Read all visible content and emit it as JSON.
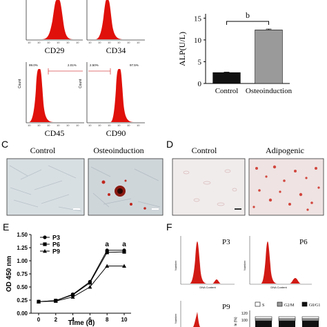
{
  "panels": {
    "flow_markers": [
      {
        "label": "CD29",
        "left_pct": "",
        "right_pct": ""
      },
      {
        "label": "CD34",
        "left_pct": "",
        "right_pct": ""
      },
      {
        "label": "CD45",
        "left_pct": "99.0%",
        "right_pct": "2.01%"
      },
      {
        "label": "CD90",
        "left_pct": "2.50%",
        "right_pct": "97.5%"
      }
    ],
    "flow_axis_label": "Count",
    "C": {
      "letter": "C",
      "images": [
        "Control",
        "Osteoinduction"
      ]
    },
    "D": {
      "letter": "D",
      "images": [
        "Control",
        "Adipogenic"
      ]
    },
    "E": {
      "letter": "E"
    },
    "F": {
      "letter": "F",
      "plots": [
        "P3",
        "P6",
        "P9"
      ],
      "dna_xlabel": "DNA Content",
      "dna_ylabel": "Number",
      "stack_legend": [
        "S",
        "G2/M",
        "G0/G1"
      ],
      "stack_yticks": [
        "120",
        "100"
      ],
      "stack_ylabel_fragment": "le (%)"
    }
  },
  "chart_data": [
    {
      "type": "bar",
      "panel": "B",
      "categories": [
        "Control",
        "Osteoinduction"
      ],
      "values": [
        2.5,
        12.3
      ],
      "errors": [
        0.1,
        0.2
      ],
      "ylabel": "ALP(U/L)",
      "ylim": [
        0,
        16
      ],
      "yticks": [
        0,
        5,
        10,
        15
      ],
      "significance_label": "b",
      "colors": [
        "#111111",
        "#9a9a9a"
      ]
    },
    {
      "type": "line",
      "panel": "E",
      "x": [
        0,
        2,
        4,
        6,
        8,
        10
      ],
      "xticks": [
        "0",
        "2",
        "4",
        "6",
        "8",
        "10"
      ],
      "xlabel": "Time (d)",
      "ylabel": "OD 450 nm",
      "ylim": [
        0,
        1.5
      ],
      "yticks": [
        "0.00",
        "0.25",
        "0.50",
        "0.75",
        "1.00",
        "1.25",
        "1.50"
      ],
      "series": [
        {
          "name": "P3",
          "marker": "circle",
          "values": [
            0.22,
            0.24,
            0.36,
            0.6,
            1.2,
            1.2
          ]
        },
        {
          "name": "P6",
          "marker": "square",
          "values": [
            0.22,
            0.24,
            0.35,
            0.58,
            1.16,
            1.17
          ]
        },
        {
          "name": "P9",
          "marker": "triangle",
          "values": [
            0.22,
            0.23,
            0.31,
            0.5,
            0.9,
            0.9
          ]
        }
      ],
      "annotations": [
        {
          "x": 8,
          "text": "a"
        },
        {
          "x": 10,
          "text": "a"
        }
      ]
    }
  ]
}
